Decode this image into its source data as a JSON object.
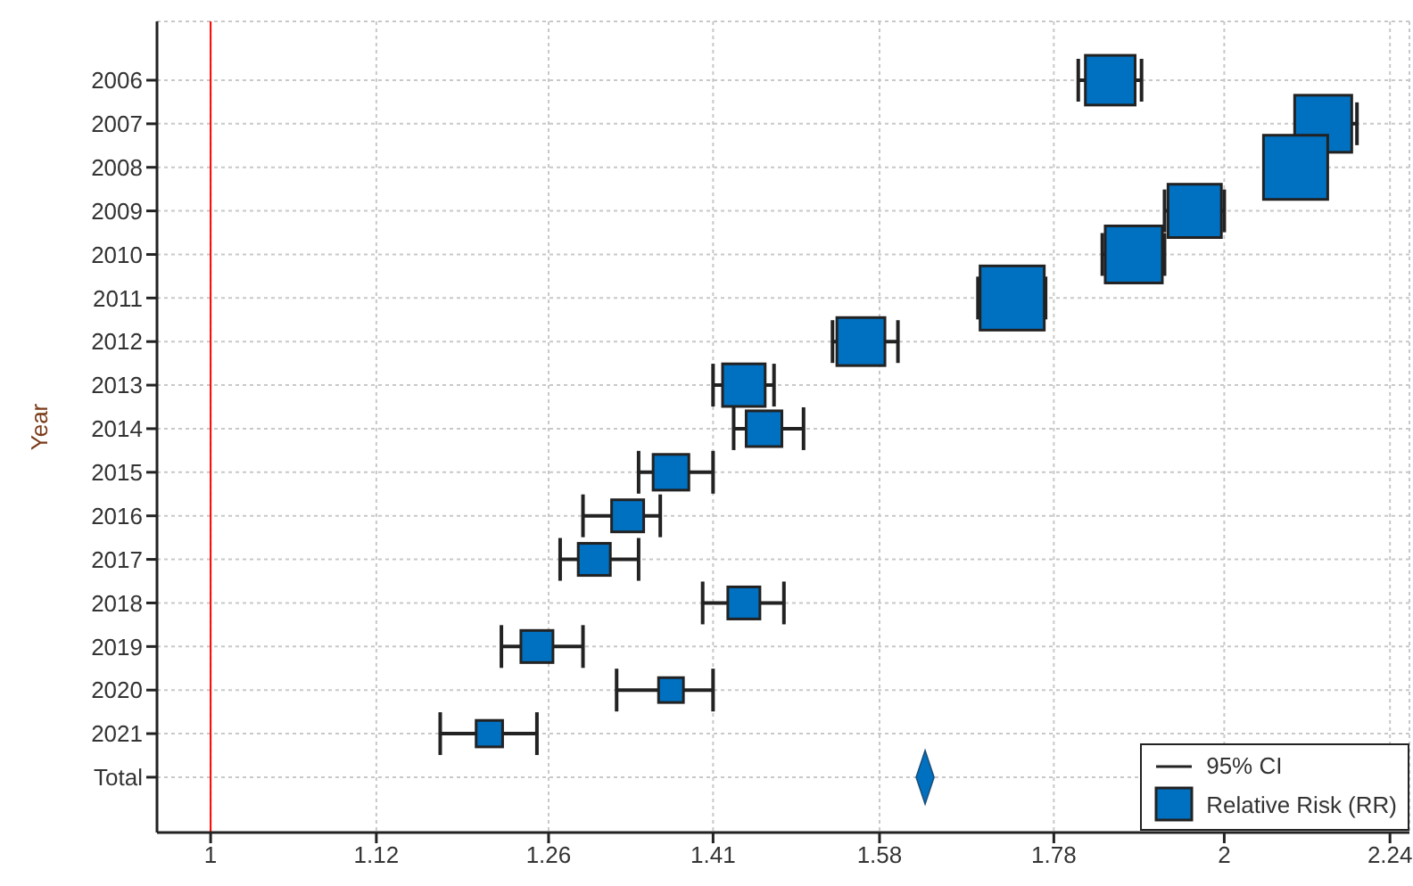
{
  "chart_data": {
    "type": "bubble",
    "orientation": "horizontal",
    "ylabel": "Year",
    "log": "x",
    "categories": [
      "2006",
      "2007",
      "2008",
      "2009",
      "2010",
      "2011",
      "2012",
      "2013",
      "2014",
      "2015",
      "2016",
      "2017",
      "2018",
      "2019",
      "2020",
      "2021",
      "Total"
    ],
    "series": [
      {
        "name": "Relative Risk (RR)",
        "marker": "square",
        "color": "#0070c0",
        "values": [
          1.85,
          2.14,
          2.1,
          1.96,
          1.88,
          1.73,
          1.56,
          1.44,
          1.46,
          1.37,
          1.33,
          1.3,
          1.44,
          1.25,
          1.37,
          1.21,
          null
        ],
        "errors": [
          [
            1.81,
            1.89
          ],
          [
            2.1,
            2.19
          ],
          null,
          [
            1.92,
            2.0
          ],
          [
            1.84,
            1.92
          ],
          [
            1.69,
            1.77
          ],
          [
            1.53,
            1.6
          ],
          [
            1.41,
            1.47
          ],
          [
            1.43,
            1.5
          ],
          [
            1.34,
            1.41
          ],
          [
            1.29,
            1.36
          ],
          [
            1.27,
            1.34
          ],
          [
            1.4,
            1.48
          ],
          [
            1.22,
            1.29
          ],
          [
            1.32,
            1.41
          ],
          [
            1.17,
            1.25
          ],
          null
        ],
        "sizes": [
          0.6,
          0.79,
          1,
          0.69,
          0.79,
          1,
          0.56,
          0.44,
          0.31,
          0.31,
          0.25,
          0.25,
          0.25,
          0.25,
          0.15,
          0.17,
          null
        ]
      },
      {
        "type": "scatter",
        "marker": "diamond",
        "color": "#0070c0",
        "values": [
          null,
          null,
          null,
          null,
          null,
          null,
          null,
          null,
          null,
          null,
          null,
          null,
          null,
          null,
          null,
          null,
          1.63
        ]
      }
    ],
    "xlim": [
      0.964,
      2.27
    ],
    "xticks": [
      1,
      1.12,
      1.26,
      1.41,
      1.58,
      1.78,
      2,
      2.24
    ],
    "ref_lines": [
      {
        "axis": "x",
        "value": 1,
        "color": "#ff0000"
      }
    ],
    "annotations": [
      "95% CI"
    ],
    "grid": true,
    "legend": "bottom right"
  }
}
